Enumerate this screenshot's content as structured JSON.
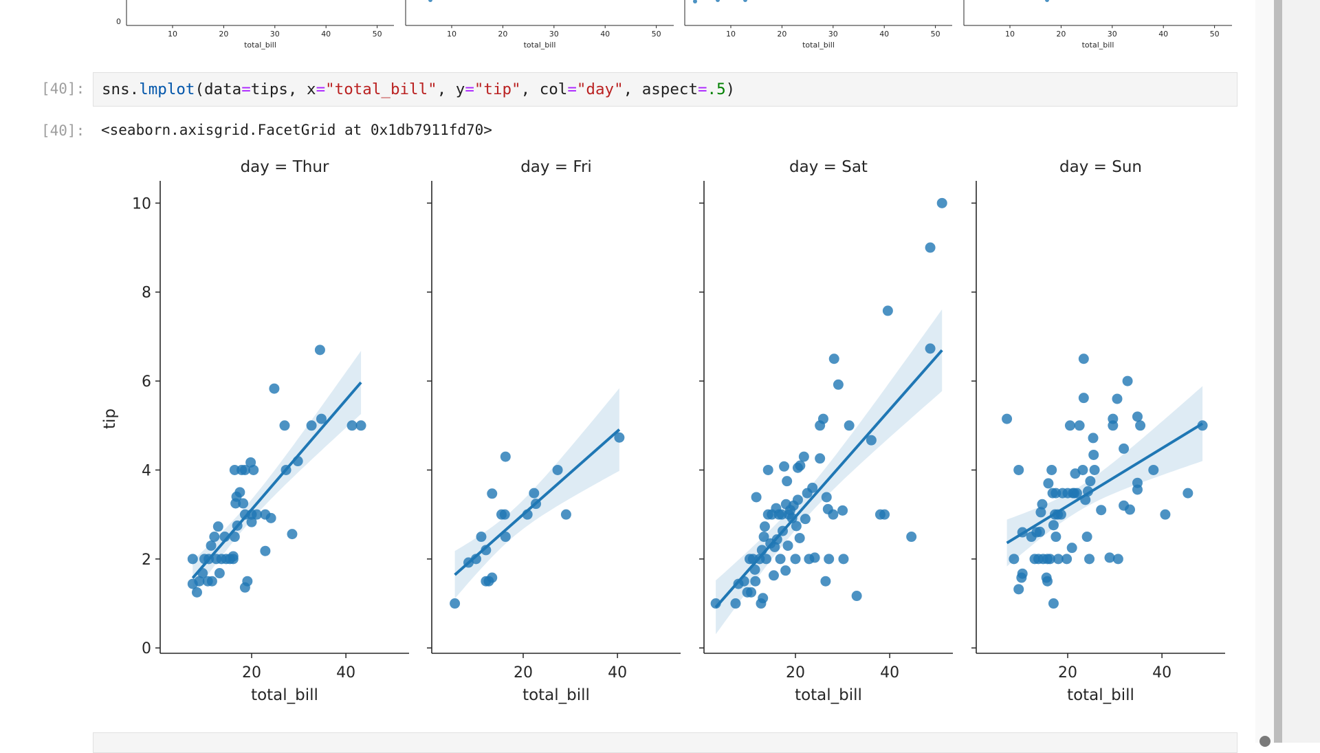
{
  "previous_output": {
    "y_tick_label": "0",
    "x_tick_labels": [
      "10",
      "20",
      "30",
      "40",
      "50"
    ],
    "xlabel": "total_bill"
  },
  "cell": {
    "input_prompt": "[40]:",
    "output_prompt": "[40]:",
    "code_parts": [
      "sns.",
      "lmplot",
      "(data",
      "=",
      "tips, x",
      "=",
      "\"total_bill\"",
      ", y",
      "=",
      "\"tip\"",
      ", col",
      "=",
      "\"day\"",
      ", aspect",
      "=",
      ".5",
      ")"
    ],
    "output_text": "<seaborn.axisgrid.FacetGrid at 0x1db7911fd70>"
  },
  "colors": {
    "points": "#1f77b4",
    "line": "#1f77b4",
    "band": "#1f77b4"
  },
  "chart_data": [
    {
      "type": "scatter",
      "title": "day = Thur",
      "xlabel": "total_bill",
      "ylabel": "tip",
      "xticks": [
        "20",
        "40"
      ],
      "yticks": [
        "0",
        "2",
        "4",
        "6",
        "8",
        "10"
      ],
      "xlim": [
        0.6,
        53.4
      ],
      "ylim": [
        -0.12,
        10.5
      ],
      "regression": true,
      "ci": 95,
      "points": [
        [
          7.5,
          2.0
        ],
        [
          7.5,
          1.44
        ],
        [
          8.4,
          1.25
        ],
        [
          8.9,
          1.5
        ],
        [
          9.6,
          1.68
        ],
        [
          10,
          2
        ],
        [
          10.9,
          2
        ],
        [
          11.4,
          2.3
        ],
        [
          10.7,
          1.5
        ],
        [
          11.6,
          1.5
        ],
        [
          12.1,
          2.5
        ],
        [
          12.5,
          2
        ],
        [
          12.9,
          2.73
        ],
        [
          13.2,
          1.68
        ],
        [
          13.6,
          2
        ],
        [
          14.3,
          2.5
        ],
        [
          14.6,
          2
        ],
        [
          15.4,
          2
        ],
        [
          16.1,
          2
        ],
        [
          16.1,
          2.06
        ],
        [
          16.4,
          2.5
        ],
        [
          16.6,
          3.25
        ],
        [
          16.96,
          2.75
        ],
        [
          16.8,
          3.4
        ],
        [
          17.5,
          3.5
        ],
        [
          18.2,
          3.25
        ],
        [
          16.4,
          4
        ],
        [
          17.9,
          4
        ],
        [
          18.6,
          4
        ],
        [
          19.8,
          4.17
        ],
        [
          20.4,
          4
        ],
        [
          18.6,
          3
        ],
        [
          20,
          3
        ],
        [
          21.1,
          3
        ],
        [
          22.9,
          3
        ],
        [
          24.1,
          2.92
        ],
        [
          20,
          2.83
        ],
        [
          19.1,
          1.5
        ],
        [
          18.6,
          1.36
        ],
        [
          22.9,
          2.18
        ],
        [
          28.6,
          2.56
        ],
        [
          27.3,
          4
        ],
        [
          29.8,
          4.2
        ],
        [
          24.8,
          5.83
        ],
        [
          27,
          5
        ],
        [
          32.7,
          5
        ],
        [
          34.8,
          5.15
        ],
        [
          34.5,
          6.7
        ],
        [
          41.3,
          5
        ],
        [
          43.2,
          5
        ]
      ]
    },
    {
      "type": "scatter",
      "title": "day = Fri",
      "xlabel": "total_bill",
      "xticks": [
        "20",
        "40"
      ],
      "xlim": [
        0.6,
        53.4
      ],
      "ylim": [
        -0.12,
        10.5
      ],
      "regression": true,
      "ci": 95,
      "points": [
        [
          5.5,
          1.0
        ],
        [
          8.4,
          1.92
        ],
        [
          10,
          2
        ],
        [
          11.1,
          2.5
        ],
        [
          12.1,
          1.5
        ],
        [
          12.7,
          1.5
        ],
        [
          12.1,
          2.2
        ],
        [
          13.4,
          1.58
        ],
        [
          13.4,
          3.47
        ],
        [
          15.4,
          3
        ],
        [
          16.1,
          3
        ],
        [
          16.25,
          2.5
        ],
        [
          16.25,
          4.3
        ],
        [
          20.9,
          3
        ],
        [
          22.3,
          3.48
        ],
        [
          22.7,
          3.24
        ],
        [
          27.3,
          4
        ],
        [
          29.1,
          3
        ],
        [
          40.4,
          4.73
        ]
      ]
    },
    {
      "type": "scatter",
      "title": "day = Sat",
      "xlabel": "total_bill",
      "xticks": [
        "20",
        "40"
      ],
      "xlim": [
        0.6,
        53.4
      ],
      "ylim": [
        -0.12,
        10.5
      ],
      "regression": true,
      "ci": 95,
      "points": [
        [
          3.1,
          1.0
        ],
        [
          7.3,
          1.0
        ],
        [
          7.9,
          1.44
        ],
        [
          9.1,
          1.5
        ],
        [
          9.8,
          1.25
        ],
        [
          10.6,
          1.25
        ],
        [
          10.3,
          2
        ],
        [
          11,
          2
        ],
        [
          11.4,
          1.76
        ],
        [
          11.5,
          1.5
        ],
        [
          11.7,
          3.39
        ],
        [
          12.4,
          2
        ],
        [
          12.7,
          1.0
        ],
        [
          13.1,
          1.12
        ],
        [
          12.9,
          2.2
        ],
        [
          13.3,
          2.5
        ],
        [
          13.5,
          2.73
        ],
        [
          13.8,
          2
        ],
        [
          14.2,
          4
        ],
        [
          14.2,
          3
        ],
        [
          14.7,
          2.35
        ],
        [
          15.0,
          3
        ],
        [
          15.4,
          1.63
        ],
        [
          15.6,
          2.27
        ],
        [
          15.9,
          3.14
        ],
        [
          16.1,
          2.44
        ],
        [
          16.5,
          3
        ],
        [
          16.8,
          2
        ],
        [
          17.1,
          3
        ],
        [
          17.3,
          2.63
        ],
        [
          17.6,
          4.08
        ],
        [
          17.9,
          1.74
        ],
        [
          18.0,
          3.23
        ],
        [
          18.2,
          3.75
        ],
        [
          18.4,
          2.3
        ],
        [
          18.6,
          3
        ],
        [
          18.9,
          3.1
        ],
        [
          19.3,
          2.92
        ],
        [
          19.6,
          3.2
        ],
        [
          20,
          2
        ],
        [
          20.2,
          2.74
        ],
        [
          20.5,
          4.05
        ],
        [
          20.5,
          3.33
        ],
        [
          20.9,
          2.47
        ],
        [
          21.0,
          4.1
        ],
        [
          21.8,
          4.3
        ],
        [
          22.1,
          2.9
        ],
        [
          22.5,
          3.48
        ],
        [
          22.9,
          2
        ],
        [
          23.6,
          3.6
        ],
        [
          24.1,
          2.03
        ],
        [
          25.2,
          4.26
        ],
        [
          25.2,
          5
        ],
        [
          25.9,
          5.15
        ],
        [
          26.4,
          1.5
        ],
        [
          26.6,
          3.39
        ],
        [
          27.1,
          2
        ],
        [
          26.9,
          3.12
        ],
        [
          28,
          3
        ],
        [
          28.2,
          6.5
        ],
        [
          29.1,
          5.92
        ],
        [
          30,
          3.09
        ],
        [
          30.2,
          2
        ],
        [
          31.4,
          5
        ],
        [
          33,
          1.17
        ],
        [
          36.1,
          4.67
        ],
        [
          38,
          3
        ],
        [
          38.9,
          3
        ],
        [
          39.6,
          7.58
        ],
        [
          44.6,
          2.5
        ],
        [
          48.6,
          9
        ],
        [
          48.6,
          6.73
        ],
        [
          51.1,
          10
        ]
      ]
    },
    {
      "type": "scatter",
      "title": "day = Sun",
      "xlabel": "total_bill",
      "xticks": [
        "20",
        "40"
      ],
      "xlim": [
        0.6,
        53.4
      ],
      "ylim": [
        -0.12,
        10.5
      ],
      "regression": true,
      "ci": 95,
      "points": [
        [
          7.1,
          5.15
        ],
        [
          8.6,
          2
        ],
        [
          9.6,
          4
        ],
        [
          9.6,
          1.32
        ],
        [
          10.2,
          1.58
        ],
        [
          10.4,
          1.67
        ],
        [
          10.4,
          2.6
        ],
        [
          12.3,
          2.5
        ],
        [
          13.0,
          2
        ],
        [
          13.4,
          2.6
        ],
        [
          13.8,
          2
        ],
        [
          14.1,
          2.61
        ],
        [
          14.3,
          3.05
        ],
        [
          14.6,
          3.23
        ],
        [
          14.8,
          2
        ],
        [
          15.5,
          1.58
        ],
        [
          15.7,
          1.5
        ],
        [
          15.7,
          2
        ],
        [
          15.9,
          3.7
        ],
        [
          16.25,
          2
        ],
        [
          16.6,
          4
        ],
        [
          16.8,
          3.48
        ],
        [
          17,
          2.76
        ],
        [
          17,
          1.0
        ],
        [
          17.3,
          3
        ],
        [
          17.5,
          3.48
        ],
        [
          17.5,
          2.5
        ],
        [
          17.9,
          3
        ],
        [
          18.0,
          2
        ],
        [
          18.6,
          3
        ],
        [
          18.9,
          3.48
        ],
        [
          19.8,
          2
        ],
        [
          20,
          3.48
        ],
        [
          20.5,
          5
        ],
        [
          20.9,
          2.25
        ],
        [
          21.1,
          3.48
        ],
        [
          21.4,
          3.48
        ],
        [
          21.6,
          3.92
        ],
        [
          21.96,
          3.48
        ],
        [
          22.5,
          5
        ],
        [
          23.2,
          4
        ],
        [
          23.4,
          5.62
        ],
        [
          23.4,
          6.5
        ],
        [
          23.75,
          3.33
        ],
        [
          24.1,
          2.5
        ],
        [
          24.3,
          3.52
        ],
        [
          24.6,
          2
        ],
        [
          24.8,
          3.75
        ],
        [
          25.5,
          4.34
        ],
        [
          25.4,
          4.72
        ],
        [
          25.7,
          4
        ],
        [
          27.1,
          3.1
        ],
        [
          28.9,
          2.03
        ],
        [
          29.6,
          5
        ],
        [
          29.6,
          5.15
        ],
        [
          30.5,
          5.6
        ],
        [
          30.7,
          2
        ],
        [
          31.9,
          4.48
        ],
        [
          31.9,
          3.2
        ],
        [
          32.7,
          6.0
        ],
        [
          33.2,
          3.11
        ],
        [
          34.8,
          5.2
        ],
        [
          34.8,
          3.71
        ],
        [
          34.8,
          3.56
        ],
        [
          35.4,
          5
        ],
        [
          38.2,
          4
        ],
        [
          40.7,
          3
        ],
        [
          45.5,
          3.48
        ],
        [
          48.6,
          5
        ]
      ]
    }
  ]
}
